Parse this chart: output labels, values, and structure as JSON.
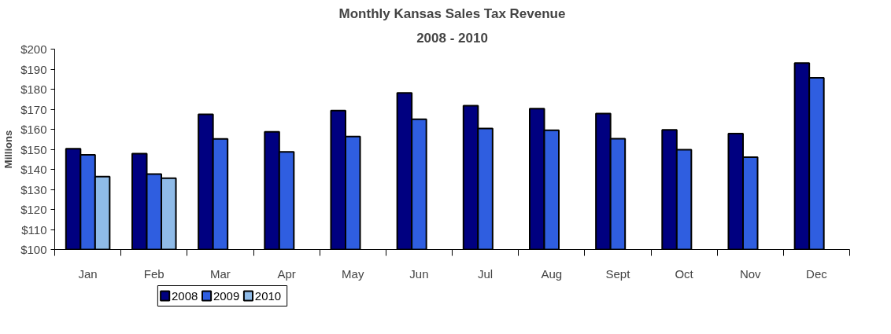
{
  "chart_data": {
    "type": "bar",
    "title": "Monthly Kansas Sales Tax Revenue",
    "subtitle": "2008 - 2010",
    "ylabel": "Millions",
    "categories": [
      "Jan",
      "Feb",
      "Mar",
      "Apr",
      "May",
      "Jun",
      "Jul",
      "Aug",
      "Sept",
      "Oct",
      "Nov",
      "Dec"
    ],
    "series": [
      {
        "name": "2008",
        "color": "#000080",
        "values": [
          150.3,
          147.8,
          167.5,
          158.7,
          169.3,
          178.1,
          171.8,
          170.3,
          167.8,
          159.7,
          157.8,
          193.0
        ]
      },
      {
        "name": "2009",
        "color": "#2f5ee0",
        "values": [
          147.3,
          137.6,
          155.2,
          148.7,
          156.4,
          165.0,
          160.4,
          159.5,
          155.3,
          149.8,
          146.1,
          185.7
        ]
      },
      {
        "name": "2010",
        "color": "#8fbbe8",
        "values": [
          136.4,
          135.6,
          null,
          null,
          null,
          null,
          null,
          null,
          null,
          null,
          null,
          null
        ]
      }
    ],
    "ylim": [
      100,
      200
    ],
    "yticks": [
      {
        "value": 100,
        "label": "$100"
      },
      {
        "value": 110,
        "label": "$110"
      },
      {
        "value": 120,
        "label": "$120"
      },
      {
        "value": 130,
        "label": "$130"
      },
      {
        "value": 140,
        "label": "$140"
      },
      {
        "value": 150,
        "label": "$150"
      },
      {
        "value": 160,
        "label": "$160"
      },
      {
        "value": 170,
        "label": "$170"
      },
      {
        "value": 180,
        "label": "$180"
      },
      {
        "value": 190,
        "label": "$190"
      },
      {
        "value": 200,
        "label": "$200"
      }
    ],
    "grid": false,
    "legend": "bottom left"
  }
}
